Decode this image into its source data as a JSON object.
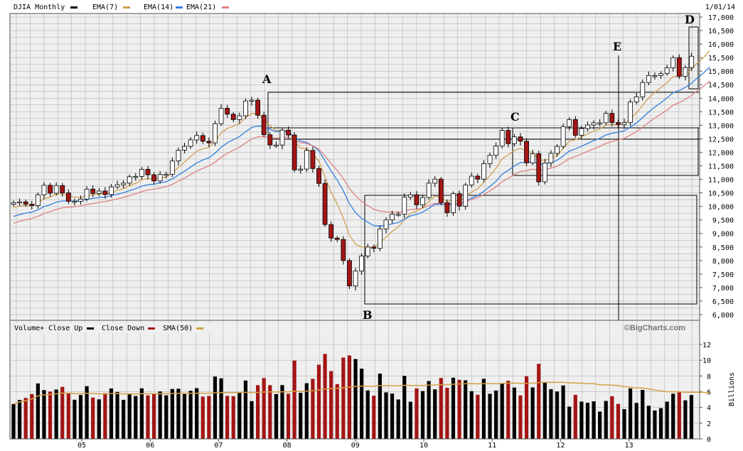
{
  "header": {
    "symbol_label": "DJIA Monthly",
    "ema7_label": "EMA(7)",
    "ema14_label": "EMA(14)",
    "ema21_label": "EMA(21)",
    "date_label": "1/01/14"
  },
  "volume_legend": {
    "volume_label": "Volume+ Close Up",
    "close_down_label": "Close Down",
    "sma_label": "SMA(50)",
    "watermark": "©BigCharts.com",
    "unit_label": "Billions"
  },
  "colors": {
    "up_candle": "#ffffff",
    "down_candle": "#a31515",
    "ema7": "#d0a050",
    "ema14": "#2f7fe0",
    "ema21": "#e08080",
    "volume_up": "#000000",
    "volume_down": "#a31515",
    "sma50": "#d4a048",
    "grid": "#a8a8a8",
    "plot_bg": "#efefef"
  },
  "chart_data": [
    {
      "type": "candlestick",
      "title": "DJIA Monthly",
      "x_categories": [
        "05",
        "06",
        "07",
        "08",
        "09",
        "10",
        "11",
        "12",
        "13"
      ],
      "yticks": [
        "6,000",
        "6,500",
        "7,000",
        "7,500",
        "8,000",
        "8,500",
        "9,000",
        "9,500",
        "10,000",
        "10,500",
        "11,000",
        "11,500",
        "12,000",
        "12,500",
        "13,000",
        "13,500",
        "14,000",
        "14,500",
        "15,000",
        "15,500",
        "16,000",
        "16,500",
        "17,000"
      ],
      "ylim": [
        6000,
        17000
      ],
      "start_month": "2004-07",
      "closes": [
        10140,
        10170,
        10080,
        10030,
        10430,
        10780,
        10490,
        10770,
        10500,
        10190,
        10190,
        10270,
        10640,
        10480,
        10570,
        10440,
        10720,
        10800,
        10860,
        11100,
        11110,
        11370,
        11170,
        10940,
        11180,
        11190,
        11680,
        12080,
        12220,
        12460,
        12620,
        12410,
        12350,
        13060,
        13630,
        13410,
        13210,
        13350,
        13900,
        13930,
        13370,
        12650,
        12270,
        12270,
        12820,
        12640,
        11350,
        11380,
        12070,
        11400,
        10850,
        9330,
        8830,
        8780,
        8000,
        7060,
        7610,
        8170,
        8500,
        8450,
        9170,
        9500,
        9710,
        9710,
        10340,
        10430,
        10060,
        10330,
        10860,
        11010,
        10140,
        9770,
        10470,
        10010,
        10790,
        11120,
        11010,
        11580,
        11890,
        12230,
        12810,
        12320,
        12570,
        12410,
        11610,
        11950,
        10910,
        11610,
        11960,
        12220,
        12950,
        13210,
        12630,
        12880,
        13010,
        13090,
        13090,
        13440,
        13100,
        13030,
        13100,
        13860,
        14050,
        14580,
        14840,
        14840,
        14910,
        15120,
        15500,
        14810,
        15130,
        15550,
        16090,
        16090,
        16580
      ],
      "series": [
        {
          "name": "EMA(7)"
        },
        {
          "name": "EMA(14)"
        },
        {
          "name": "EMA(21)"
        }
      ],
      "annotations": [
        "A",
        "B",
        "C",
        "D",
        "E"
      ],
      "grid": true
    },
    {
      "type": "bar",
      "title": "Volume+",
      "ylabel": "Billions",
      "yticks": [
        "0",
        "2",
        "4",
        "6",
        "8",
        "10",
        "12"
      ],
      "ylim": [
        0,
        12.9
      ],
      "series": [
        {
          "name": "Volume+ Close Up"
        },
        {
          "name": "Close Down"
        },
        {
          "name": "SMA(50)"
        }
      ],
      "grid": true
    }
  ]
}
